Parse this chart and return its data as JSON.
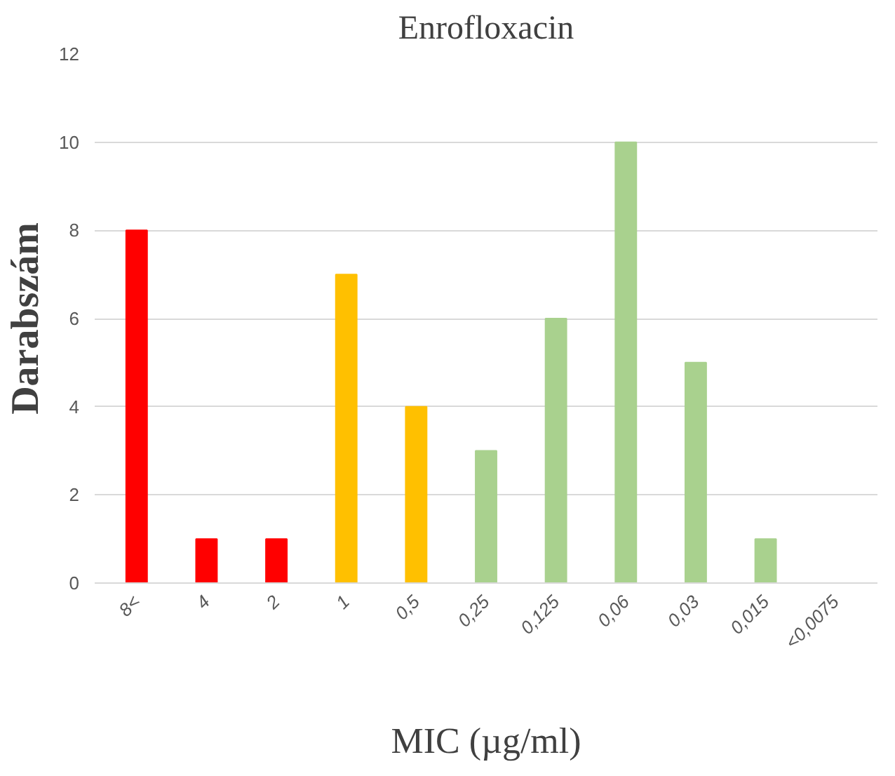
{
  "chart_data": {
    "type": "bar",
    "title": "Enrofloxacin",
    "xlabel": "MIC (µg/ml)",
    "ylabel": "Darabszám",
    "categories": [
      "8<",
      "4",
      "2",
      "1",
      "0,5",
      "0,25",
      "0,125",
      "0,06",
      "0,03",
      "0,015",
      "<0,0075"
    ],
    "values": [
      8,
      1,
      1,
      7,
      4,
      3,
      6,
      10,
      5,
      1,
      0
    ],
    "colors": [
      "#ff0000",
      "#ff0000",
      "#ff0000",
      "#ffc000",
      "#ffc000",
      "#a9d18e",
      "#a9d18e",
      "#a9d18e",
      "#a9d18e",
      "#a9d18e",
      "#a9d18e"
    ],
    "ylim": [
      0,
      12
    ],
    "yticks": [
      0,
      2,
      4,
      6,
      8,
      10,
      12
    ],
    "grid": "y"
  }
}
